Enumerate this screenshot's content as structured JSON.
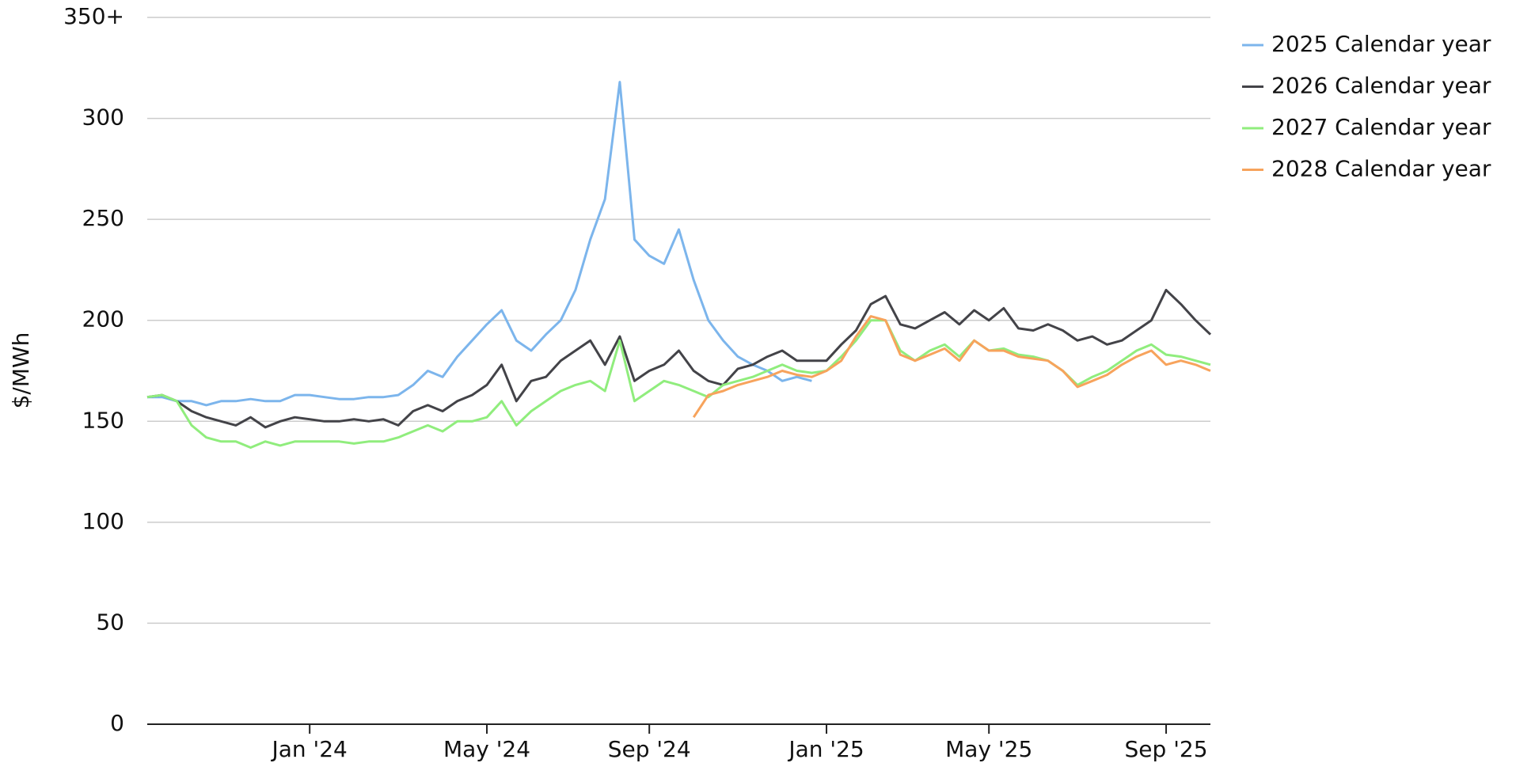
{
  "chart_data": {
    "type": "line",
    "y_label": "$/MWh",
    "categories": [
      null,
      null,
      null,
      null,
      null,
      null,
      null,
      null,
      null,
      null,
      null,
      "Jan '24",
      null,
      null,
      null,
      null,
      null,
      null,
      null,
      null,
      null,
      null,
      null,
      "May '24",
      null,
      null,
      null,
      null,
      null,
      null,
      null,
      null,
      null,
      null,
      "Sep '24",
      null,
      null,
      null,
      null,
      null,
      null,
      null,
      null,
      null,
      null,
      null,
      "Jan '25",
      null,
      null,
      null,
      null,
      null,
      null,
      null,
      null,
      null,
      null,
      "May '25",
      null,
      null,
      null,
      null,
      null,
      null,
      null,
      null,
      null,
      null,
      null,
      "Sep '25",
      null,
      null,
      null
    ],
    "series": [
      {
        "name": "2025 Calendar year",
        "color": "#7cb5ec",
        "values": [
          162,
          162,
          160,
          160,
          158,
          160,
          160,
          161,
          160,
          160,
          163,
          163,
          162,
          161,
          161,
          162,
          162,
          163,
          168,
          175,
          172,
          182,
          190,
          198,
          205,
          190,
          185,
          193,
          200,
          215,
          240,
          260,
          318,
          240,
          232,
          228,
          245,
          220,
          200,
          190,
          182,
          178,
          175,
          170,
          172,
          170,
          null,
          null,
          null,
          null,
          null,
          null,
          null,
          null,
          null,
          null,
          null,
          null,
          null,
          null,
          null,
          null,
          null,
          null,
          null,
          null,
          null,
          null,
          null,
          null,
          null,
          null,
          null
        ]
      },
      {
        "name": "2026 Calendar year",
        "color": "#434348",
        "values": [
          162,
          163,
          160,
          155,
          152,
          150,
          148,
          152,
          147,
          150,
          152,
          151,
          150,
          150,
          151,
          150,
          151,
          148,
          155,
          158,
          155,
          160,
          163,
          168,
          178,
          160,
          170,
          172,
          180,
          185,
          190,
          178,
          192,
          170,
          175,
          178,
          185,
          175,
          170,
          168,
          176,
          178,
          182,
          185,
          180,
          180,
          180,
          188,
          195,
          208,
          212,
          198,
          196,
          200,
          204,
          198,
          205,
          200,
          206,
          196,
          195,
          198,
          195,
          190,
          192,
          188,
          190,
          195,
          200,
          215,
          208,
          200,
          193
        ]
      },
      {
        "name": "2027 Calendar year",
        "color": "#90ed7d",
        "values": [
          162,
          163,
          160,
          148,
          142,
          140,
          140,
          137,
          140,
          138,
          140,
          140,
          140,
          140,
          139,
          140,
          140,
          142,
          145,
          148,
          145,
          150,
          150,
          152,
          160,
          148,
          155,
          160,
          165,
          168,
          170,
          165,
          190,
          160,
          165,
          170,
          168,
          165,
          162,
          168,
          170,
          172,
          175,
          178,
          175,
          174,
          175,
          182,
          190,
          200,
          200,
          185,
          180,
          185,
          188,
          182,
          190,
          185,
          186,
          183,
          182,
          180,
          175,
          168,
          172,
          175,
          180,
          185,
          188,
          183,
          182,
          180,
          178
        ]
      },
      {
        "name": "2028 Calendar year",
        "color": "#f7a35c",
        "values": [
          null,
          null,
          null,
          null,
          null,
          null,
          null,
          null,
          null,
          null,
          null,
          null,
          null,
          null,
          null,
          null,
          null,
          null,
          null,
          null,
          null,
          null,
          null,
          null,
          null,
          null,
          null,
          null,
          null,
          null,
          null,
          null,
          null,
          null,
          null,
          null,
          null,
          152,
          163,
          165,
          168,
          170,
          172,
          175,
          173,
          172,
          175,
          180,
          192,
          202,
          200,
          183,
          180,
          183,
          186,
          180,
          190,
          185,
          185,
          182,
          181,
          180,
          175,
          167,
          170,
          173,
          178,
          182,
          185,
          178,
          180,
          178,
          175
        ]
      }
    ],
    "ylim": [
      0,
      350
    ],
    "yticks": [
      0,
      50,
      100,
      150,
      200,
      250,
      300,
      {
        "value": 350,
        "label": "350+"
      }
    ],
    "grid": true,
    "legend": "right"
  }
}
